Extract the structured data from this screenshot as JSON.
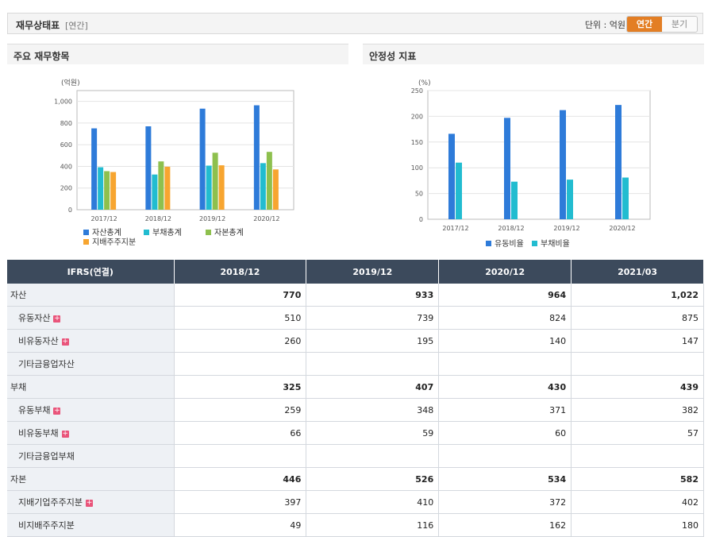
{
  "header": {
    "title": "재무상태표",
    "subtitle": "[연간]",
    "unit_label": "단위 : 억원",
    "toggle_active": "연간",
    "toggle_inactive": "분기"
  },
  "left_panel_title": "주요 재무항목",
  "right_panel_title": "안정성 지표",
  "chart_data": [
    {
      "type": "bar",
      "ylabel": "(억원)",
      "categories": [
        "2017/12",
        "2018/12",
        "2019/12",
        "2020/12"
      ],
      "ylim": [
        0,
        1100
      ],
      "yticks": [
        0,
        200,
        400,
        600,
        800,
        "1,000"
      ],
      "grid": true,
      "legend_placement": "bottom",
      "series": [
        {
          "name": "자산총계",
          "color": "#2e7bd9",
          "values": [
            751,
            770,
            933,
            964
          ]
        },
        {
          "name": "부채총계",
          "color": "#22bcd0",
          "values": [
            392,
            325,
            407,
            430
          ]
        },
        {
          "name": "자본총계",
          "color": "#8ec04e",
          "values": [
            356,
            446,
            526,
            534
          ]
        },
        {
          "name": "지배주주지분",
          "color": "#f7a530",
          "values": [
            348,
            397,
            410,
            372
          ]
        }
      ]
    },
    {
      "type": "bar",
      "ylabel": "(%)",
      "categories": [
        "2017/12",
        "2018/12",
        "2019/12",
        "2020/12"
      ],
      "ylim": [
        0,
        250
      ],
      "yticks": [
        0,
        50,
        100,
        150,
        200,
        250
      ],
      "grid": true,
      "legend_placement": "bottom",
      "series": [
        {
          "name": "유동비율",
          "color": "#2e7bd9",
          "values": [
            166,
            197,
            212,
            222
          ]
        },
        {
          "name": "부채비율",
          "color": "#22bcd0",
          "values": [
            110,
            73,
            77,
            81
          ]
        }
      ]
    }
  ],
  "table": {
    "header": [
      "IFRS(연결)",
      "2018/12",
      "2019/12",
      "2020/12",
      "2021/03"
    ],
    "rows": [
      {
        "label": "자산",
        "level": "main",
        "values": [
          "770",
          "933",
          "964",
          "1,022"
        ]
      },
      {
        "label": "유동자산",
        "level": "sub",
        "plus": true,
        "values": [
          "510",
          "739",
          "824",
          "875"
        ]
      },
      {
        "label": "비유동자산",
        "level": "sub",
        "plus": true,
        "values": [
          "260",
          "195",
          "140",
          "147"
        ]
      },
      {
        "label": "기타금융업자산",
        "level": "sub",
        "values": [
          "",
          "",
          "",
          ""
        ]
      },
      {
        "label": "부채",
        "level": "main",
        "values": [
          "325",
          "407",
          "430",
          "439"
        ]
      },
      {
        "label": "유동부채",
        "level": "sub",
        "plus": true,
        "values": [
          "259",
          "348",
          "371",
          "382"
        ]
      },
      {
        "label": "비유동부채",
        "level": "sub",
        "plus": true,
        "values": [
          "66",
          "59",
          "60",
          "57"
        ]
      },
      {
        "label": "기타금융업부채",
        "level": "sub",
        "values": [
          "",
          "",
          "",
          ""
        ]
      },
      {
        "label": "자본",
        "level": "main",
        "values": [
          "446",
          "526",
          "534",
          "582"
        ]
      },
      {
        "label": "지배기업주주지분",
        "level": "sub",
        "plus": true,
        "values": [
          "397",
          "410",
          "372",
          "402"
        ]
      },
      {
        "label": "비지배주주지분",
        "level": "sub",
        "values": [
          "49",
          "116",
          "162",
          "180"
        ]
      }
    ]
  }
}
